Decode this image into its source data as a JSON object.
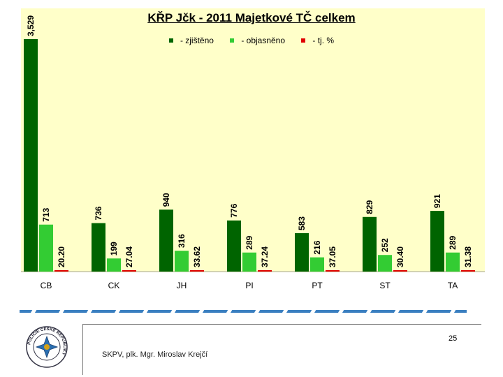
{
  "chart_data": {
    "type": "bar",
    "title": "KŘP Jčk - 2011 Majetkové TČ celkem",
    "categories": [
      "CB",
      "CK",
      "JH",
      "PI",
      "PT",
      "ST",
      "TA"
    ],
    "series": [
      {
        "name": "- zjištěno",
        "color": "#006400",
        "values": [
          3529,
          736,
          940,
          776,
          583,
          829,
          921
        ],
        "labels": [
          "3,529",
          "736",
          "940",
          "776",
          "583",
          "829",
          "921"
        ]
      },
      {
        "name": "- objasněno",
        "color": "#33cc33",
        "values": [
          713,
          199,
          316,
          289,
          216,
          252,
          289
        ],
        "labels": [
          "713",
          "199",
          "316",
          "289",
          "216",
          "252",
          "289"
        ]
      },
      {
        "name": "- tj. %",
        "color": "#e00000",
        "values": [
          20.2,
          27.04,
          33.62,
          37.24,
          37.05,
          30.4,
          31.38
        ],
        "labels": [
          "20.20",
          "27.04",
          "33.62",
          "37.24",
          "37.05",
          "30.40",
          "31.38"
        ]
      }
    ],
    "ylim": [
      0,
      3529
    ],
    "grid": false,
    "legend_position": "top-center"
  },
  "footer": {
    "page_number": "25",
    "author": "SKPV, plk. Mgr. Miroslav Krejčí"
  },
  "seal": {
    "text": "POLICIE ČESKÉ REPUBLIKY"
  }
}
